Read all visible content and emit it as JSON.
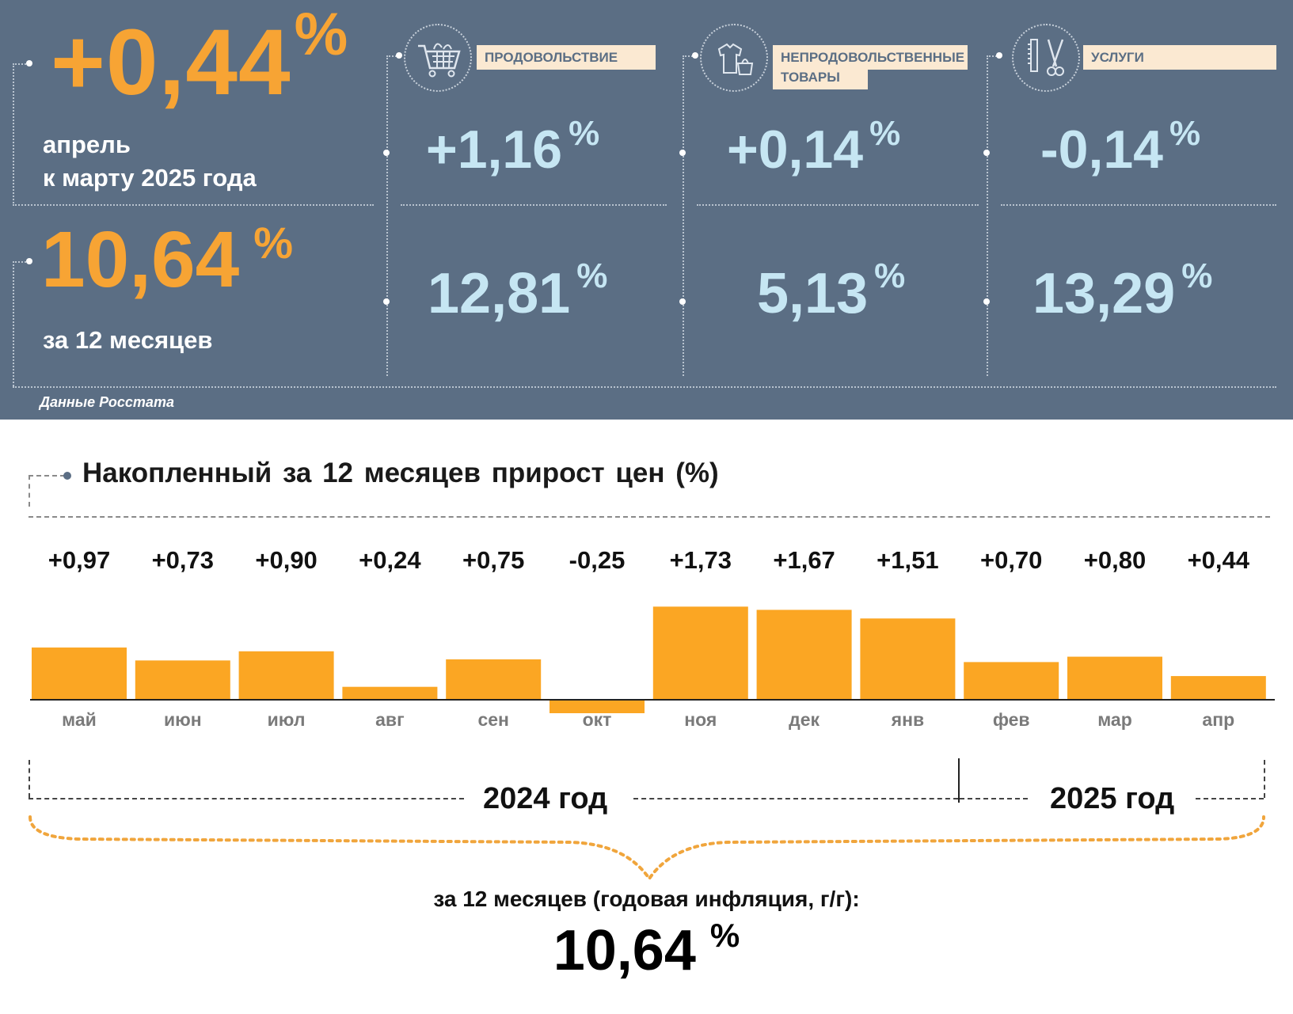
{
  "top": {
    "monthly_value": "+0,44",
    "pct": "%",
    "monthly_caption_1": "апрель",
    "monthly_caption_2": "к марту 2025 года",
    "annual_value": "10,64",
    "annual_caption": "за 12 месяцев",
    "source": "Данные Росстата",
    "categories": [
      {
        "label": "ПРОДОВОЛЬСТВИЕ",
        "icon": "shopping-cart-icon",
        "monthly": "+1,16",
        "annual": "12,81"
      },
      {
        "label_1": "НЕПРОДОВОЛЬСТВЕННЫЕ",
        "label_2": "ТОВАРЫ",
        "icon": "clothes-bag-icon",
        "monthly": "+0,14",
        "annual": "5,13"
      },
      {
        "label": "УСЛУГИ",
        "icon": "comb-scissors-icon",
        "monthly": "-0,14",
        "annual": "13,29"
      }
    ]
  },
  "chart_data": {
    "type": "bar",
    "title": "Накопленный за 12 месяцев прирост цен (%)",
    "categories": [
      "май",
      "июн",
      "июл",
      "авг",
      "сен",
      "окт",
      "ноя",
      "дек",
      "янв",
      "фев",
      "мар",
      "апр"
    ],
    "values": [
      0.97,
      0.73,
      0.9,
      0.24,
      0.75,
      -0.25,
      1.73,
      1.67,
      1.51,
      0.7,
      0.8,
      0.44
    ],
    "value_labels": [
      "+0,97",
      "+0,73",
      "+0,90",
      "+0,24",
      "+0,75",
      "-0,25",
      "+1,73",
      "+1,67",
      "+1,51",
      "+0,70",
      "+0,80",
      "+0,44"
    ],
    "year_labels": [
      "2024 год",
      "2025 год"
    ],
    "total_caption": "за 12 месяцев (годовая инфляция, г/г):",
    "total_value": "10,64",
    "total_pct": "%",
    "bar_color": "#fba623"
  }
}
